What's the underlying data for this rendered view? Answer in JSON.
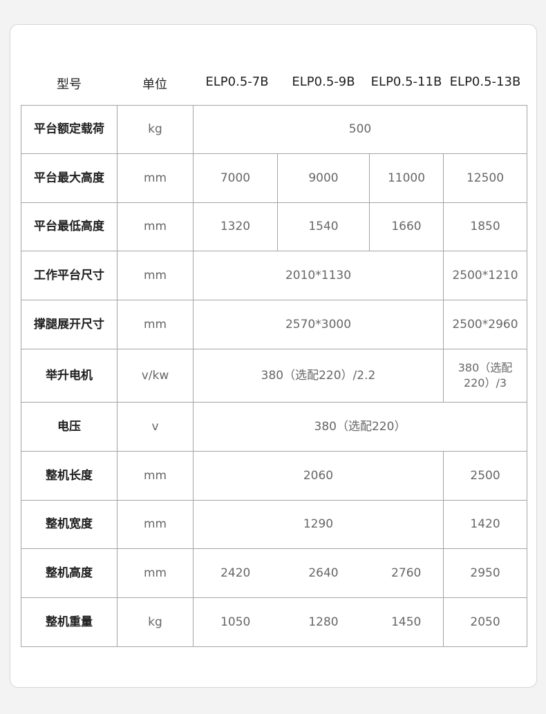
{
  "header": [
    "型号",
    "单位",
    "ELP0.5-7B",
    "ELP0.5-9B",
    "ELP0.5-11B",
    "ELP0.5-13B"
  ],
  "rows": [
    {
      "label": "平台额定载荷",
      "unit": "kg",
      "values": [
        "500"
      ]
    },
    {
      "label": "平台最大高度",
      "unit": "mm",
      "values": [
        "7000",
        "9000",
        "11000",
        "12500"
      ]
    },
    {
      "label": "平台最低高度",
      "unit": "mm",
      "values": [
        "1320",
        "1540",
        "1660",
        "1850"
      ]
    },
    {
      "label": "工作平台尺寸",
      "unit": "mm",
      "values": [
        "2010*1130",
        "2500*1210"
      ]
    },
    {
      "label": "撑腿展开尺寸",
      "unit": "mm",
      "values": [
        "2570*3000",
        "2500*2960"
      ]
    },
    {
      "label": "举升电机",
      "unit": "v/kw",
      "values": [
        "380（选配220）/2.2",
        "380（选配220）/3"
      ]
    },
    {
      "label": "电压",
      "unit": "v",
      "values": [
        "380（选配220）"
      ]
    },
    {
      "label": "整机长度",
      "unit": "mm",
      "values": [
        "2060",
        "2500"
      ]
    },
    {
      "label": "整机宽度",
      "unit": "mm",
      "values": [
        "1290",
        "1420"
      ]
    },
    {
      "label": "整机高度",
      "unit": "mm",
      "values": [
        "2420",
        "2640",
        "2760",
        "2950"
      ]
    },
    {
      "label": "整机重量",
      "unit": "kg",
      "values": [
        "1050",
        "1280",
        "1450",
        "2050"
      ]
    }
  ]
}
